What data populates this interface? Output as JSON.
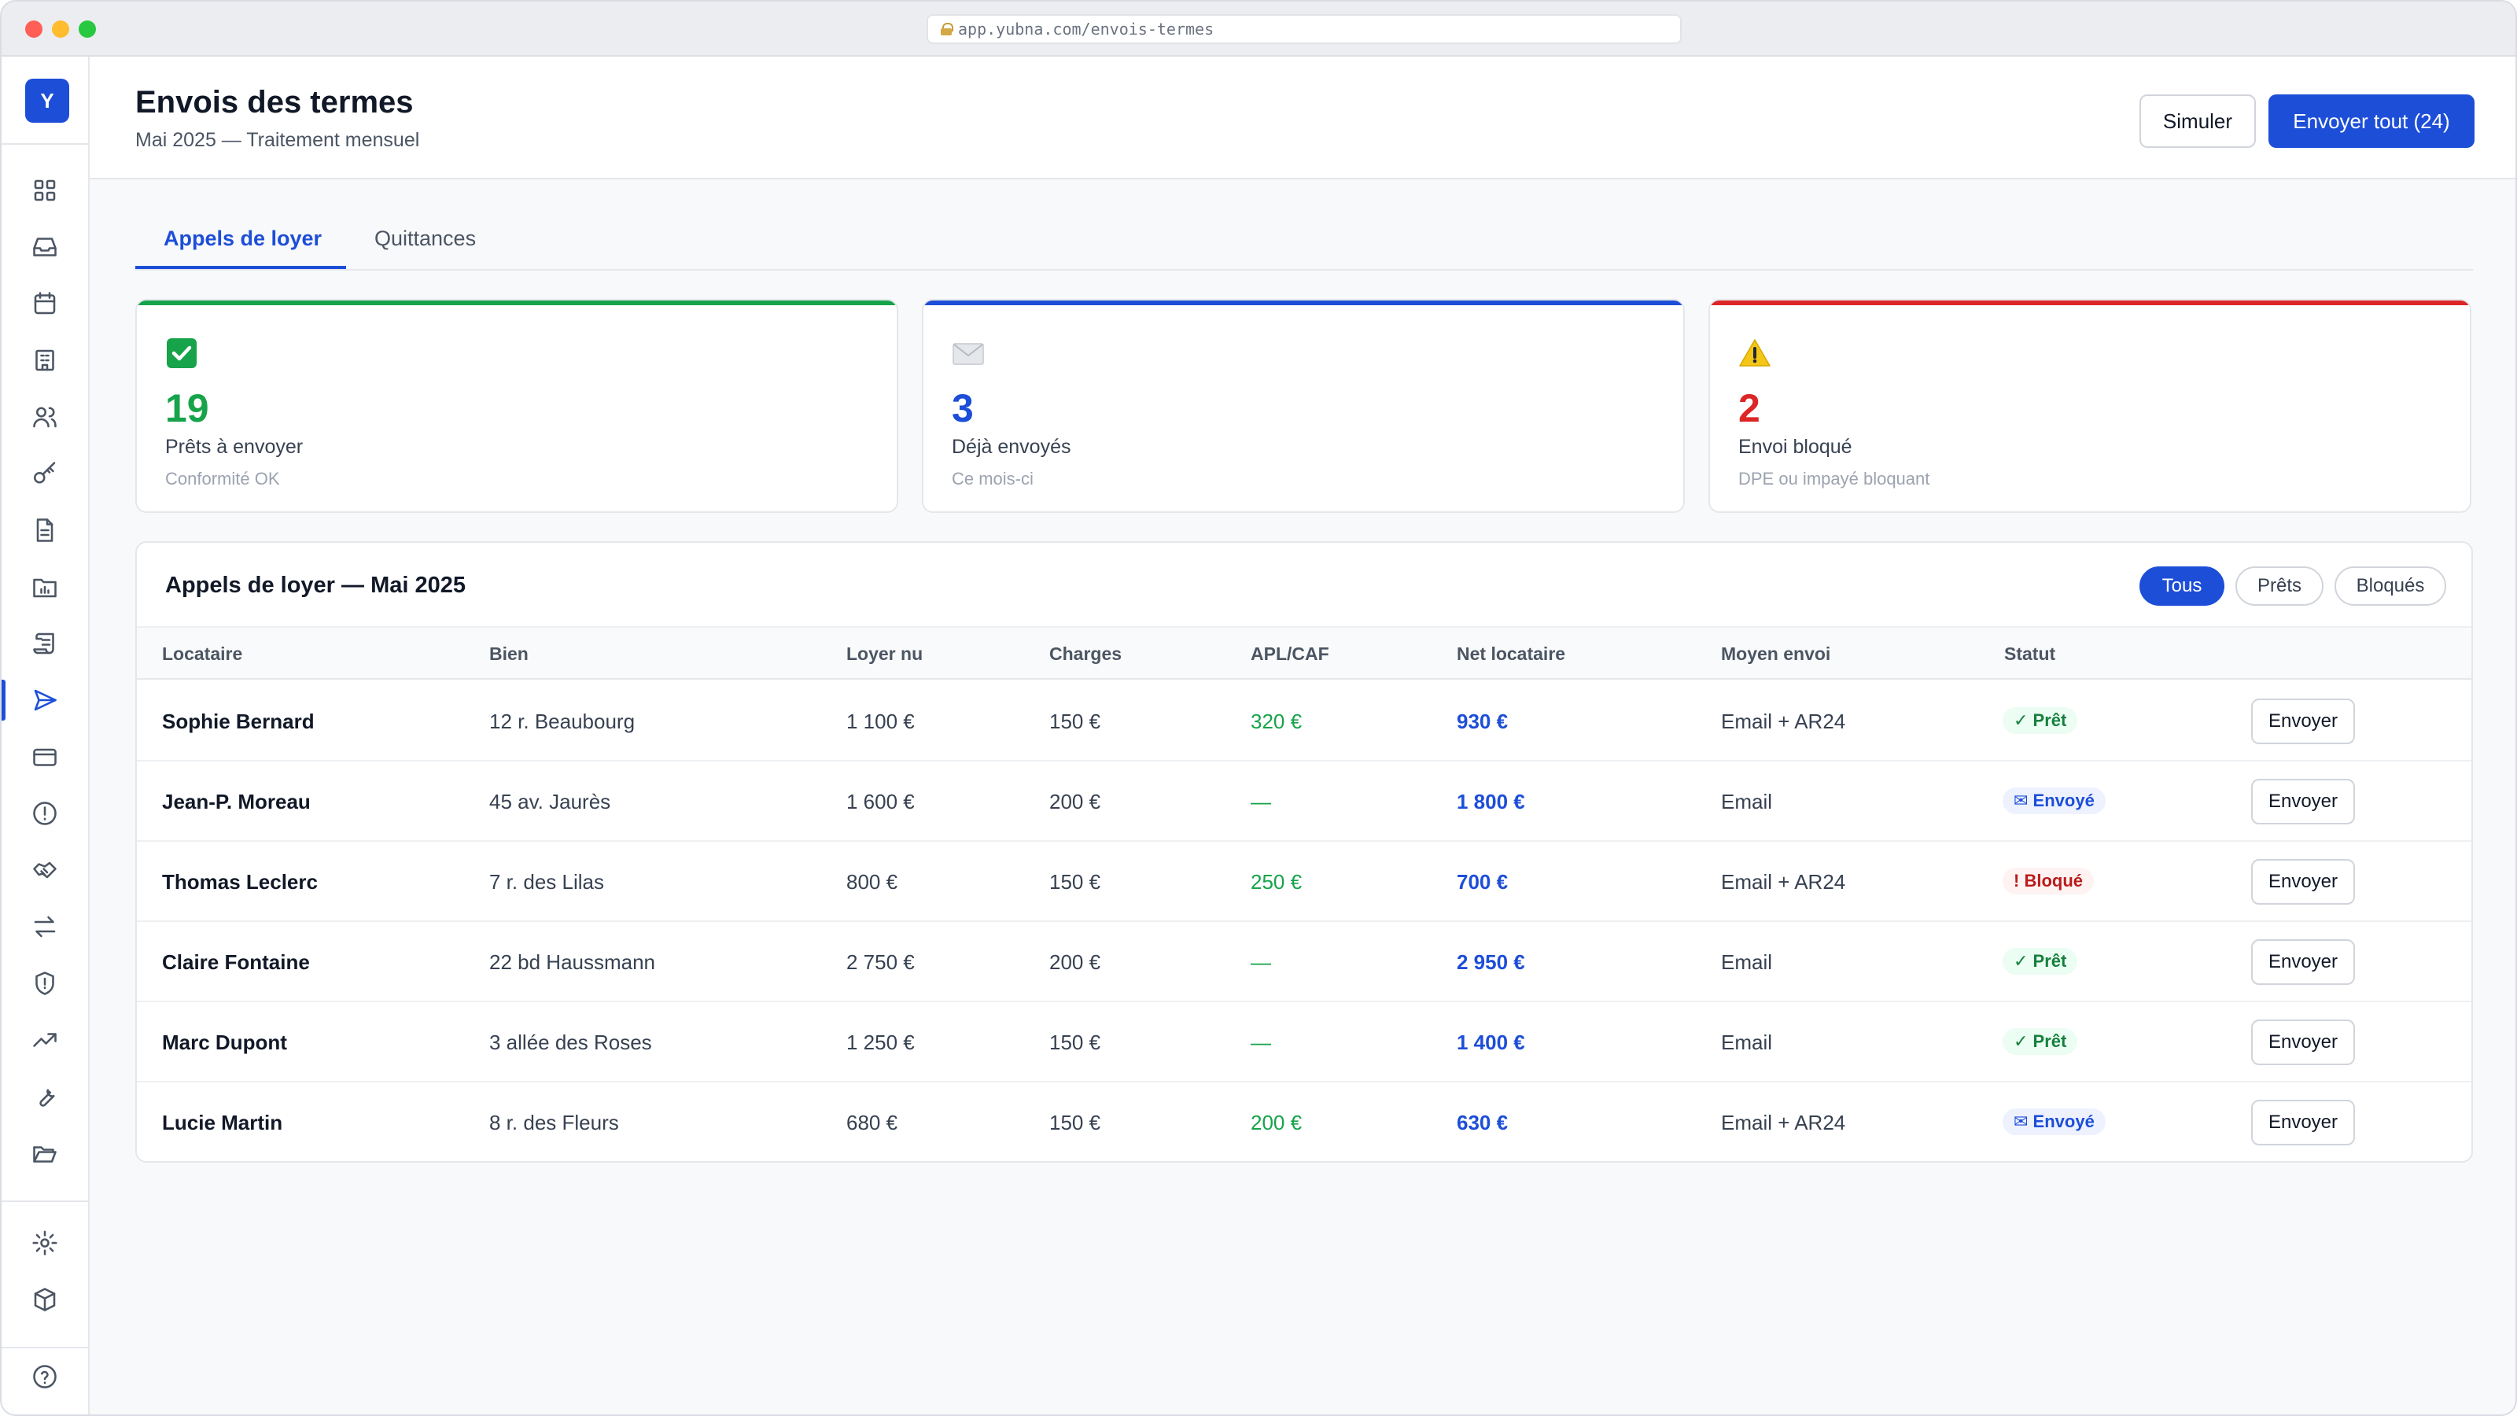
{
  "browser": {
    "url": "app.yubna.com/envois-termes"
  },
  "sidebar": {
    "logo": "Y",
    "items": [
      {
        "icon": "dashboard-icon"
      },
      {
        "icon": "inbox-icon"
      },
      {
        "icon": "calendar-icon"
      },
      {
        "icon": "building-icon"
      },
      {
        "icon": "users-icon"
      },
      {
        "icon": "key-icon"
      },
      {
        "icon": "document-icon"
      },
      {
        "icon": "folder-chart-icon"
      },
      {
        "icon": "scroll-icon"
      },
      {
        "icon": "send-icon",
        "active": true
      },
      {
        "icon": "credit-card-icon"
      },
      {
        "icon": "alert-circle-icon"
      },
      {
        "icon": "handshake-icon"
      },
      {
        "icon": "transfer-icon"
      },
      {
        "icon": "shield-icon"
      },
      {
        "icon": "trending-up-icon"
      },
      {
        "icon": "wrench-icon"
      },
      {
        "icon": "folder-open-icon"
      },
      {
        "icon": "settings-icon"
      },
      {
        "icon": "package-icon"
      },
      {
        "icon": "help-icon"
      }
    ]
  },
  "header": {
    "title": "Envois des termes",
    "subtitle": "Mai 2025 — Traitement mensuel",
    "simulate_label": "Simuler",
    "send_all_label": "Envoyer tout (24)"
  },
  "tabs": [
    {
      "label": "Appels de loyer",
      "active": true
    },
    {
      "label": "Quittances",
      "active": false
    }
  ],
  "stats": [
    {
      "icon": "check-box-icon",
      "value": "19",
      "label": "Prêts à envoyer",
      "sub": "Conformité OK",
      "color": "#16a34a"
    },
    {
      "icon": "envelope-icon",
      "value": "3",
      "label": "Déjà envoyés",
      "sub": "Ce mois-ci",
      "color": "#1d4ed8"
    },
    {
      "icon": "warning-icon",
      "value": "2",
      "label": "Envoi bloqué",
      "sub": "DPE ou impayé bloquant",
      "color": "#dc2626"
    }
  ],
  "table": {
    "title": "Appels de loyer — Mai 2025",
    "filters": [
      {
        "label": "Tous",
        "active": true
      },
      {
        "label": "Prêts",
        "active": false
      },
      {
        "label": "Bloqués",
        "active": false
      }
    ],
    "columns": [
      "Locataire",
      "Bien",
      "Loyer nu",
      "Charges",
      "APL/CAF",
      "Net locataire",
      "Moyen envoi",
      "Statut"
    ],
    "action_label": "Envoyer",
    "rows": [
      {
        "tenant": "Sophie Bernard",
        "property": "12 r. Beaubourg",
        "rent": "1 100 €",
        "charges": "150 €",
        "apl": "320 €",
        "net": "930 €",
        "method": "Email + AR24",
        "status": "✓ Prêt",
        "status_type": "ready"
      },
      {
        "tenant": "Jean-P. Moreau",
        "property": "45 av. Jaurès",
        "rent": "1 600 €",
        "charges": "200 €",
        "apl": "—",
        "net": "1 800 €",
        "method": "Email",
        "status": "✉ Envoyé",
        "status_type": "sent"
      },
      {
        "tenant": "Thomas Leclerc",
        "property": "7 r. des Lilas",
        "rent": "800 €",
        "charges": "150 €",
        "apl": "250 €",
        "net": "700 €",
        "method": "Email + AR24",
        "status": "! Bloqué",
        "status_type": "blocked"
      },
      {
        "tenant": "Claire Fontaine",
        "property": "22 bd Haussmann",
        "rent": "2 750 €",
        "charges": "200 €",
        "apl": "—",
        "net": "2 950 €",
        "method": "Email",
        "status": "✓ Prêt",
        "status_type": "ready"
      },
      {
        "tenant": "Marc Dupont",
        "property": "3 allée des Roses",
        "rent": "1 250 €",
        "charges": "150 €",
        "apl": "—",
        "net": "1 400 €",
        "method": "Email",
        "status": "✓ Prêt",
        "status_type": "ready"
      },
      {
        "tenant": "Lucie Martin",
        "property": "8 r. des Fleurs",
        "rent": "680 €",
        "charges": "150 €",
        "apl": "200 €",
        "net": "630 €",
        "method": "Email + AR24",
        "status": "✉ Envoyé",
        "status_type": "sent"
      }
    ]
  }
}
